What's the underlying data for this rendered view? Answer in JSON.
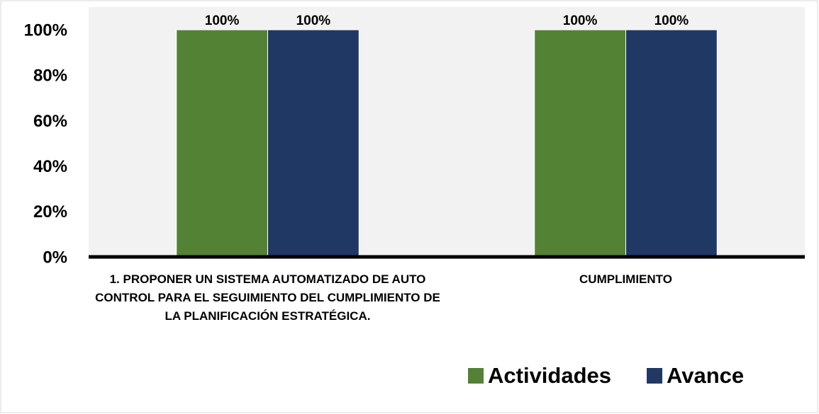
{
  "chart_data": {
    "type": "bar",
    "categories": [
      "1. PROPONER  UN SISTEMA AUTOMATIZADO DE AUTO CONTROL PARA EL SEGUIMIENTO DEL CUMPLIMIENTO DE LA PLANIFICACIÓN ESTRATÉGICA.",
      "CUMPLIMIENTO"
    ],
    "series": [
      {
        "name": "Actividades",
        "color": "#548235",
        "values": [
          100,
          100
        ],
        "value_labels": [
          "100%",
          "100%"
        ]
      },
      {
        "name": "Avance",
        "color": "#203864",
        "values": [
          100,
          100
        ],
        "value_labels": [
          "100%",
          "100%"
        ]
      }
    ],
    "ylim": [
      0,
      110
    ],
    "yticks": [
      {
        "value": 0,
        "label": "0%"
      },
      {
        "value": 20,
        "label": "20%"
      },
      {
        "value": 40,
        "label": "40%"
      },
      {
        "value": 60,
        "label": "60%"
      },
      {
        "value": 80,
        "label": "80%"
      },
      {
        "value": 100,
        "label": "100%"
      }
    ],
    "legend": "bottom-right"
  }
}
